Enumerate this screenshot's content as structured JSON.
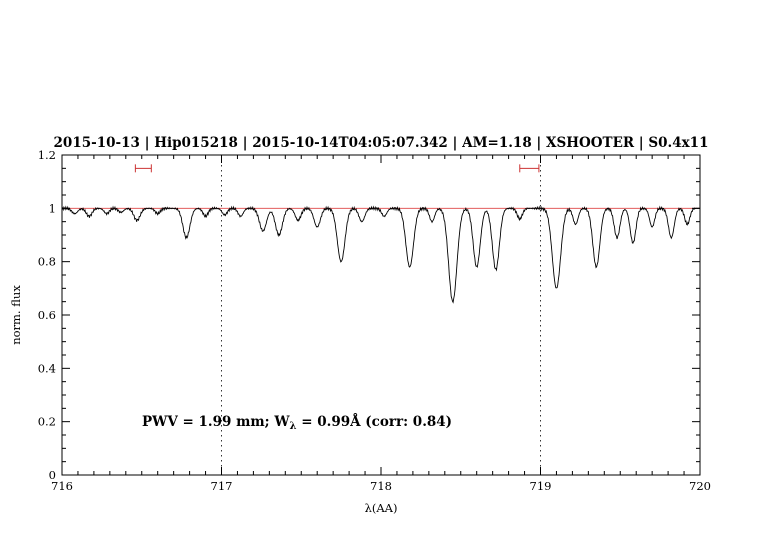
{
  "header": {
    "title": "2015-10-13 | Hip015218 | 2015-10-14T04:05:07.342 | AM=1.18 | XSHOOTER | S0.4x11",
    "title_color": "#0000dd"
  },
  "annotation": {
    "part1": "PWV = 1.99 mm; W",
    "sub": "λ",
    "part2": " = 0.99Å (corr: 0.84)",
    "color": "#0000dd"
  },
  "chart_data": {
    "type": "line",
    "title": "2015-10-13 | Hip015218 | 2015-10-14T04:05:07.342 | AM=1.18 | XSHOOTER | S0.4x11",
    "xlabel": "λ(AA)",
    "ylabel": "norm. flux",
    "xlim": [
      716,
      720
    ],
    "ylim": [
      0,
      1.2
    ],
    "xticks": [
      716,
      717,
      718,
      719,
      720
    ],
    "yticks": [
      {
        "v": 0,
        "label": "0"
      },
      {
        "v": 0.2,
        "label": "0.2"
      },
      {
        "v": 0.4,
        "label": "0.4"
      },
      {
        "v": 0.6,
        "label": "0.6"
      },
      {
        "v": 0.8,
        "label": "0.8"
      },
      {
        "v": 1,
        "label": "1"
      },
      {
        "v": 1.2,
        "label": "1.2"
      }
    ],
    "x_minor_step": 0.1,
    "y_minor_step": 0.05,
    "grid": "off",
    "legend": "none",
    "continuum_level": 1.0,
    "continuum_color": "#dd4444",
    "spectrum_color": "#000000",
    "dotted_vlines": [
      717,
      719
    ],
    "vline_color": "#333333",
    "marker_color": "#cc3333",
    "range_markers": [
      {
        "x1": 716.46,
        "x2": 716.56,
        "y": 1.15
      },
      {
        "x1": 718.87,
        "x2": 718.99,
        "y": 1.15
      }
    ],
    "sample_step": 0.004,
    "absorption_lines": [
      {
        "center": 716.08,
        "depth": 0.02,
        "sigma": 0.018
      },
      {
        "center": 716.17,
        "depth": 0.03,
        "sigma": 0.018
      },
      {
        "center": 716.28,
        "depth": 0.02,
        "sigma": 0.016
      },
      {
        "center": 716.37,
        "depth": 0.015,
        "sigma": 0.016
      },
      {
        "center": 716.47,
        "depth": 0.045,
        "sigma": 0.02
      },
      {
        "center": 716.6,
        "depth": 0.02,
        "sigma": 0.016
      },
      {
        "center": 716.78,
        "depth": 0.11,
        "sigma": 0.022
      },
      {
        "center": 716.9,
        "depth": 0.03,
        "sigma": 0.016
      },
      {
        "center": 717.02,
        "depth": 0.025,
        "sigma": 0.016
      },
      {
        "center": 717.12,
        "depth": 0.03,
        "sigma": 0.016
      },
      {
        "center": 717.26,
        "depth": 0.085,
        "sigma": 0.022
      },
      {
        "center": 717.36,
        "depth": 0.1,
        "sigma": 0.022
      },
      {
        "center": 717.48,
        "depth": 0.045,
        "sigma": 0.018
      },
      {
        "center": 717.6,
        "depth": 0.07,
        "sigma": 0.02
      },
      {
        "center": 717.75,
        "depth": 0.2,
        "sigma": 0.024
      },
      {
        "center": 717.88,
        "depth": 0.05,
        "sigma": 0.018
      },
      {
        "center": 718.02,
        "depth": 0.03,
        "sigma": 0.016
      },
      {
        "center": 718.18,
        "depth": 0.22,
        "sigma": 0.024
      },
      {
        "center": 718.32,
        "depth": 0.05,
        "sigma": 0.016
      },
      {
        "center": 718.45,
        "depth": 0.35,
        "sigma": 0.026
      },
      {
        "center": 718.6,
        "depth": 0.22,
        "sigma": 0.022
      },
      {
        "center": 718.72,
        "depth": 0.23,
        "sigma": 0.022
      },
      {
        "center": 718.87,
        "depth": 0.04,
        "sigma": 0.016
      },
      {
        "center": 719.1,
        "depth": 0.3,
        "sigma": 0.026
      },
      {
        "center": 719.22,
        "depth": 0.06,
        "sigma": 0.016
      },
      {
        "center": 719.35,
        "depth": 0.22,
        "sigma": 0.022
      },
      {
        "center": 719.48,
        "depth": 0.11,
        "sigma": 0.018
      },
      {
        "center": 719.58,
        "depth": 0.13,
        "sigma": 0.018
      },
      {
        "center": 719.7,
        "depth": 0.07,
        "sigma": 0.016
      },
      {
        "center": 719.82,
        "depth": 0.11,
        "sigma": 0.018
      },
      {
        "center": 719.92,
        "depth": 0.06,
        "sigma": 0.016
      }
    ]
  }
}
